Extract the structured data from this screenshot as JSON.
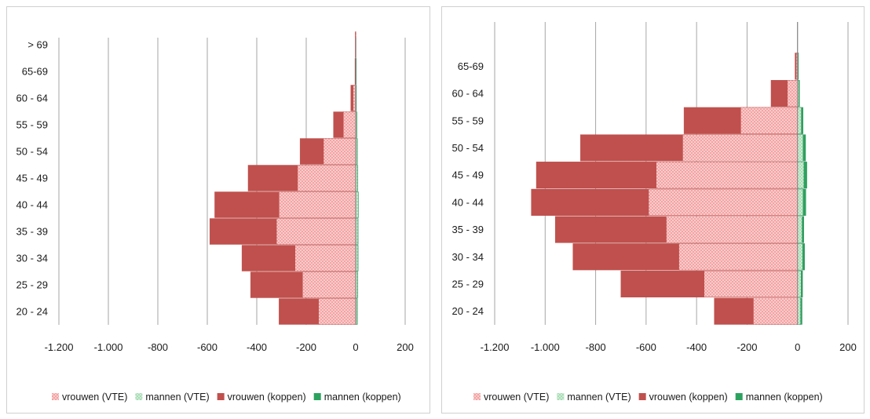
{
  "colors": {
    "vrouwen_vte": "#f4a3a3",
    "vrouwen_vte_dots": "#ffffff",
    "vrouwen_koppen": "#c0504d",
    "mannen_vte": "#a8ddb5",
    "mannen_koppen": "#2ca25f",
    "grid": "#a6a6a6",
    "panel_border": "#d0d0d0"
  },
  "legend": [
    {
      "key": "vrouwen_vte",
      "label": "vrouwen (VTE)",
      "style": "dotted"
    },
    {
      "key": "mannen_vte",
      "label": "mannen (VTE)",
      "style": "dotted"
    },
    {
      "key": "vrouwen_koppen",
      "label": "vrouwen (koppen)",
      "style": "solid"
    },
    {
      "key": "mannen_koppen",
      "label": "mannen (koppen)",
      "style": "solid"
    }
  ],
  "chart_data": [
    {
      "type": "bar",
      "orientation": "horizontal",
      "categories": [
        "20 - 24",
        "25 - 29",
        "30 - 34",
        "35 - 39",
        "40 - 44",
        "45 - 49",
        "50 - 54",
        "55 - 59",
        "60 - 64",
        "65-69",
        "> 69"
      ],
      "xlim": [
        -1200,
        200
      ],
      "xticks": [
        -1200,
        -1000,
        -800,
        -600,
        -400,
        -200,
        0,
        200
      ],
      "xtick_labels": [
        "-1.200",
        "-1.000",
        "-800",
        "-600",
        "-400",
        "-200",
        "0",
        "200"
      ],
      "grid": "vertical",
      "legend_position": "bottom",
      "series": [
        {
          "key": "vrouwen_koppen",
          "values": [
            -310,
            -425,
            -460,
            -590,
            -570,
            -435,
            -225,
            -90,
            -20,
            -3,
            -2
          ]
        },
        {
          "key": "vrouwen_vte",
          "values": [
            -150,
            -215,
            -245,
            -320,
            -310,
            -235,
            -130,
            -50,
            -10,
            -2,
            -1
          ]
        },
        {
          "key": "mannen_koppen",
          "values": [
            7,
            9,
            10,
            10,
            11,
            9,
            7,
            5,
            3,
            1,
            0
          ]
        },
        {
          "key": "mannen_vte",
          "values": [
            6,
            8,
            9,
            9,
            10,
            8,
            6,
            4,
            2,
            1,
            0
          ]
        }
      ]
    },
    {
      "type": "bar",
      "orientation": "horizontal",
      "categories": [
        "20 - 24",
        "25 - 29",
        "30 - 34",
        "35 - 39",
        "40 - 44",
        "45 - 49",
        "50 - 54",
        "55 - 59",
        "60 - 64",
        "65-69"
      ],
      "xlim": [
        -1200,
        200
      ],
      "xticks": [
        -1200,
        -1000,
        -800,
        -600,
        -400,
        -200,
        0,
        200
      ],
      "xtick_labels": [
        "-1.200",
        "-1.000",
        "-800",
        "-600",
        "-400",
        "-200",
        "0",
        "200"
      ],
      "grid": "vertical",
      "legend_position": "bottom",
      "series": [
        {
          "key": "vrouwen_koppen",
          "values": [
            -330,
            -700,
            -890,
            -960,
            -1055,
            -1035,
            -860,
            -450,
            -105,
            -10
          ]
        },
        {
          "key": "vrouwen_vte",
          "values": [
            -175,
            -370,
            -470,
            -520,
            -590,
            -560,
            -455,
            -225,
            -40,
            -5
          ]
        },
        {
          "key": "mannen_koppen",
          "values": [
            18,
            20,
            28,
            25,
            33,
            37,
            32,
            22,
            8,
            4
          ]
        },
        {
          "key": "mannen_vte",
          "values": [
            12,
            14,
            20,
            18,
            22,
            25,
            22,
            15,
            5,
            2
          ]
        }
      ]
    }
  ]
}
